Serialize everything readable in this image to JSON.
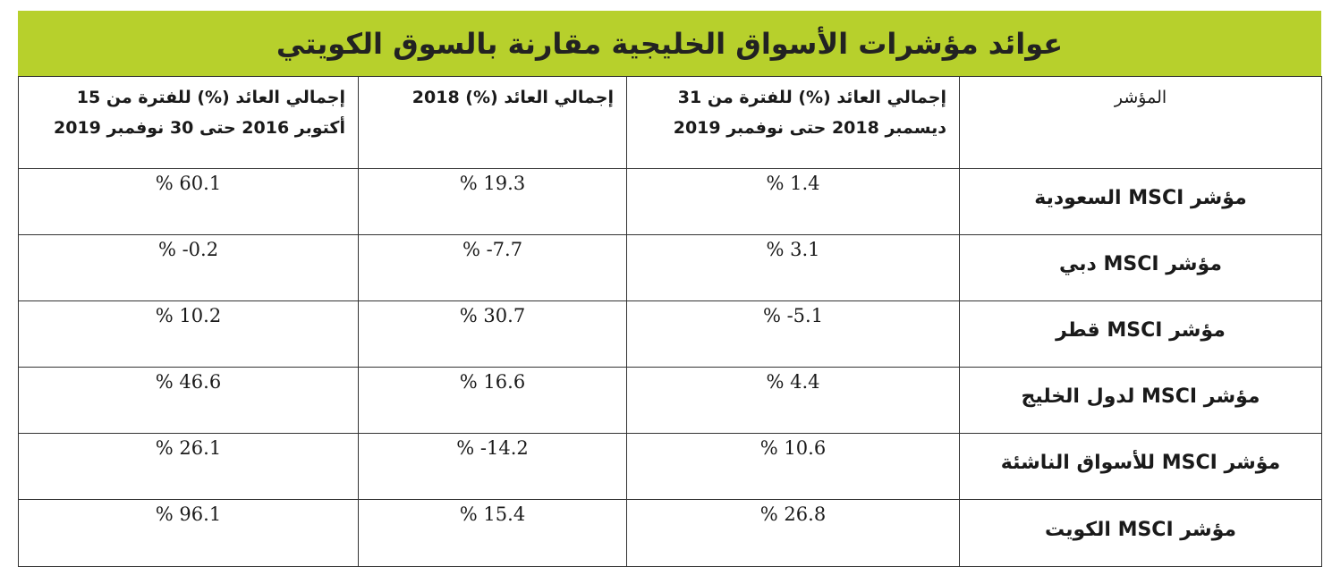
{
  "title": "عوائد مؤشرات الأسواق الخليجية مقارنة بالسوق الكويتي",
  "table": {
    "header": [
      "المؤشر",
      "إجمالي العائد (%) للفترة من 31 ديسمبر 2018 حتى نوفمبر 2019",
      "إجمالي العائد (%) 2018",
      "إجمالي العائد (%) للفترة من 15 أكتوبر 2016 حتى 30 نوفمبر 2019"
    ],
    "rows": [
      [
        "مؤشر MSCI السعودية",
        "% 1.4",
        "% 19.3",
        "% 60.1"
      ],
      [
        "مؤشر MSCI دبي",
        "% 3.1",
        "% -7.7",
        "% -0.2"
      ],
      [
        "مؤشر MSCI قطر",
        "% -5.1",
        "% 30.7",
        "% 10.2"
      ],
      [
        "مؤشر MSCI لدول الخليج",
        "% 4.4",
        "% 16.6",
        "% 46.6"
      ],
      [
        "مؤشر MSCI للأسواق الناشئة",
        "% 10.6",
        "% -14.2",
        "% 26.1"
      ],
      [
        "مؤشر MSCI الكويت",
        "% 26.8",
        "% 15.4",
        "% 96.1"
      ]
    ]
  }
}
